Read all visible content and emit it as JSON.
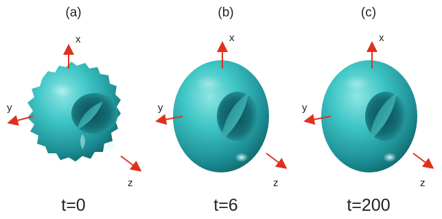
{
  "figure": {
    "colors": {
      "surface": "#3cc4c4",
      "surface_dark": "#0f5e64",
      "surface_light": "#bff2f0",
      "axis_arrow": "#e0301e",
      "text": "#222222"
    },
    "panels": [
      {
        "label": "(a)",
        "time": "t=0",
        "shape": "rough-torus",
        "axes": {
          "x": "x",
          "y": "y",
          "z": "z"
        }
      },
      {
        "label": "(b)",
        "time": "t=6",
        "shape": "smooth-torus",
        "axes": {
          "x": "x",
          "y": "y",
          "z": "z"
        }
      },
      {
        "label": "(c)",
        "time": "t=200",
        "shape": "smooth-torus",
        "axes": {
          "x": "x",
          "y": "y",
          "z": "z"
        }
      }
    ]
  }
}
